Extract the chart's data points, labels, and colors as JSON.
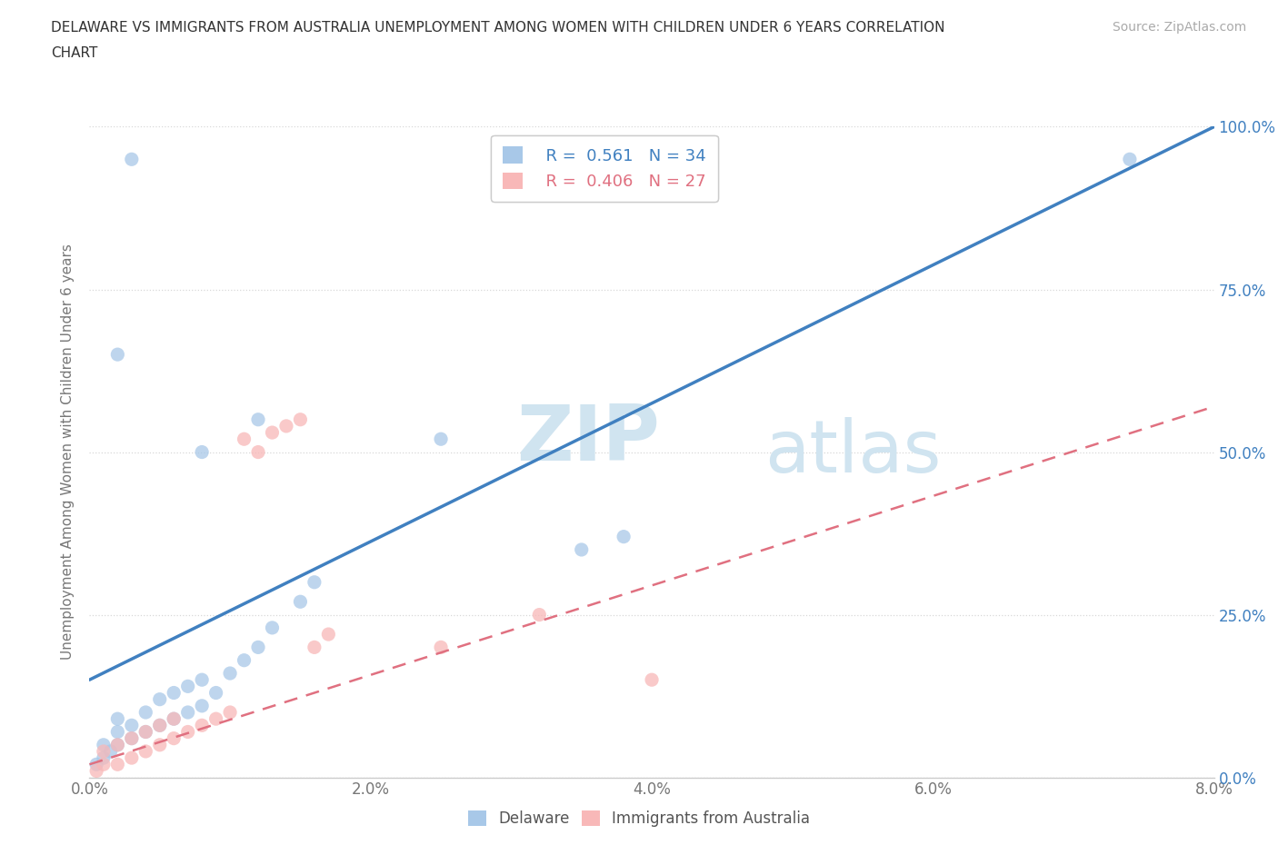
{
  "title_line1": "DELAWARE VS IMMIGRANTS FROM AUSTRALIA UNEMPLOYMENT AMONG WOMEN WITH CHILDREN UNDER 6 YEARS CORRELATION",
  "title_line2": "CHART",
  "source": "Source: ZipAtlas.com",
  "ylabel": "Unemployment Among Women with Children Under 6 years",
  "xlim": [
    0.0,
    0.08
  ],
  "ylim": [
    0.0,
    1.0
  ],
  "yticks": [
    0.0,
    0.25,
    0.5,
    0.75,
    1.0
  ],
  "yticklabels": [
    "0.0%",
    "25.0%",
    "50.0%",
    "75.0%",
    "100.0%"
  ],
  "blue_color": "#a8c8e8",
  "pink_color": "#f8b8b8",
  "trend_blue": "#4080c0",
  "trend_pink": "#e07080",
  "watermark_color": "#d0e4f0",
  "blue_scatter_x": [
    0.0005,
    0.001,
    0.001,
    0.0015,
    0.002,
    0.002,
    0.002,
    0.003,
    0.003,
    0.004,
    0.004,
    0.005,
    0.005,
    0.006,
    0.006,
    0.007,
    0.007,
    0.008,
    0.008,
    0.009,
    0.01,
    0.011,
    0.012,
    0.013,
    0.015,
    0.016,
    0.002,
    0.003,
    0.008,
    0.012,
    0.025,
    0.035,
    0.038,
    0.074
  ],
  "blue_scatter_y": [
    0.02,
    0.03,
    0.05,
    0.04,
    0.05,
    0.07,
    0.09,
    0.06,
    0.08,
    0.07,
    0.1,
    0.08,
    0.12,
    0.09,
    0.13,
    0.1,
    0.14,
    0.11,
    0.15,
    0.13,
    0.16,
    0.18,
    0.2,
    0.23,
    0.27,
    0.3,
    0.65,
    0.95,
    0.5,
    0.55,
    0.52,
    0.35,
    0.37,
    0.95
  ],
  "pink_scatter_x": [
    0.0005,
    0.001,
    0.001,
    0.002,
    0.002,
    0.003,
    0.003,
    0.004,
    0.004,
    0.005,
    0.005,
    0.006,
    0.006,
    0.007,
    0.008,
    0.009,
    0.01,
    0.011,
    0.012,
    0.013,
    0.014,
    0.015,
    0.016,
    0.017,
    0.025,
    0.032,
    0.04
  ],
  "pink_scatter_y": [
    0.01,
    0.02,
    0.04,
    0.02,
    0.05,
    0.03,
    0.06,
    0.04,
    0.07,
    0.05,
    0.08,
    0.06,
    0.09,
    0.07,
    0.08,
    0.09,
    0.1,
    0.52,
    0.5,
    0.53,
    0.54,
    0.55,
    0.2,
    0.22,
    0.2,
    0.25,
    0.15
  ],
  "blue_trend_x": [
    0.0,
    0.08
  ],
  "blue_trend_y": [
    0.15,
    1.0
  ],
  "pink_trend_x": [
    0.0,
    0.08
  ],
  "pink_trend_y": [
    0.02,
    0.57
  ],
  "background_color": "#ffffff",
  "grid_color": "#d8d8d8"
}
